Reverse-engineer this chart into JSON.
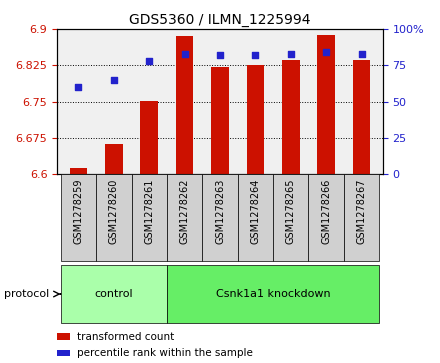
{
  "title": "GDS5360 / ILMN_1225994",
  "samples": [
    "GSM1278259",
    "GSM1278260",
    "GSM1278261",
    "GSM1278262",
    "GSM1278263",
    "GSM1278264",
    "GSM1278265",
    "GSM1278266",
    "GSM1278267"
  ],
  "transformed_count": [
    6.612,
    6.662,
    6.752,
    6.885,
    6.822,
    6.825,
    6.836,
    6.888,
    6.836
  ],
  "percentile_rank": [
    60,
    65,
    78,
    83,
    82,
    82,
    83,
    84,
    83
  ],
  "ylim_left": [
    6.6,
    6.9
  ],
  "ylim_right": [
    0,
    100
  ],
  "yticks_left": [
    6.6,
    6.675,
    6.75,
    6.825,
    6.9
  ],
  "yticks_right": [
    0,
    25,
    50,
    75,
    100
  ],
  "ytick_labels_left": [
    "6.6",
    "6.675",
    "6.75",
    "6.825",
    "6.9"
  ],
  "ytick_labels_right": [
    "0",
    "25",
    "50",
    "75",
    "100%"
  ],
  "bar_color": "#cc1100",
  "dot_color": "#2222cc",
  "grid_color": "#000000",
  "bar_width": 0.5,
  "protocol_groups": [
    {
      "label": "control",
      "start": 0,
      "end": 2,
      "color": "#aaffaa"
    },
    {
      "label": "Csnk1a1 knockdown",
      "start": 3,
      "end": 8,
      "color": "#66ee66"
    }
  ],
  "protocol_label": "protocol",
  "legend_items": [
    {
      "label": "transformed count",
      "color": "#cc1100"
    },
    {
      "label": "percentile rank within the sample",
      "color": "#2222cc"
    }
  ],
  "tick_color_left": "#cc1100",
  "tick_color_right": "#2222cc",
  "background_plot": "#f0f0f0",
  "background_xtick": "#d0d0d0"
}
